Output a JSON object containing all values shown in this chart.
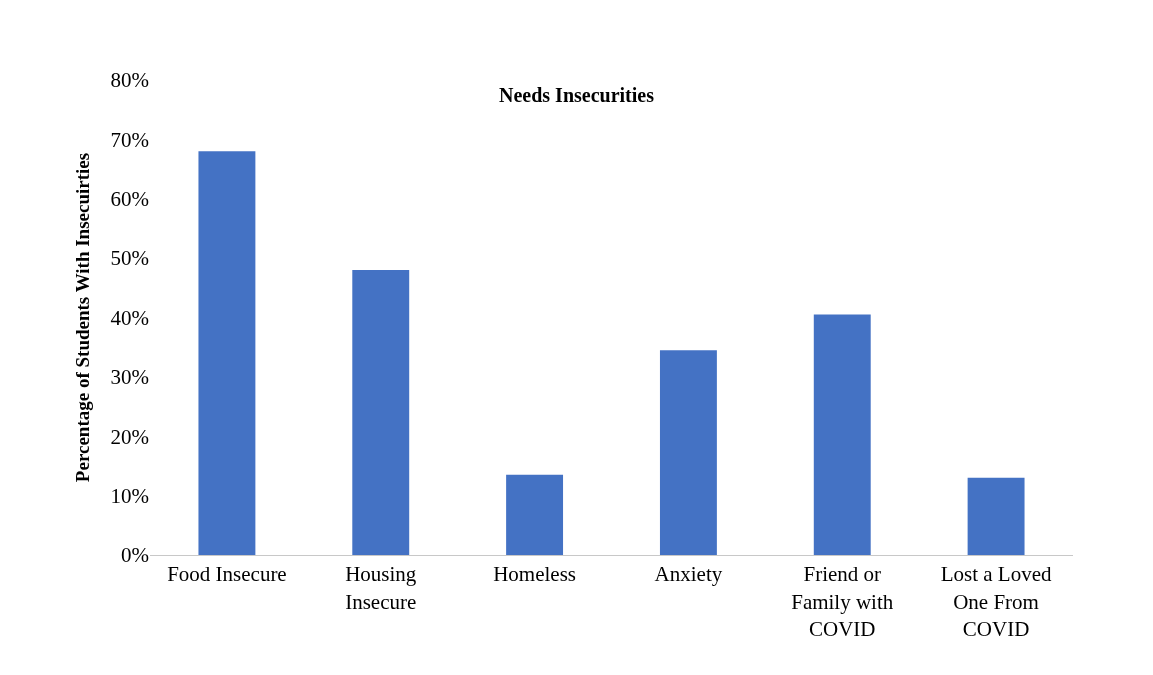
{
  "chart_data": {
    "type": "bar",
    "title": "Needs Insecurities",
    "ylabel": "Percentage of Students With Insecuirties",
    "categories": [
      "Food Insecure",
      "Housing\nInsecure",
      "Homeless",
      "Anxiety",
      "Friend or\nFamily with\nCOVID",
      "Lost a Loved\nOne From\nCOVID"
    ],
    "values": [
      68,
      48,
      13.5,
      34.5,
      40.5,
      13
    ],
    "color": "#4472c4",
    "ylim": [
      0,
      80
    ],
    "yticks": [
      {
        "value": 0,
        "label": "0%"
      },
      {
        "value": 10,
        "label": "10%"
      },
      {
        "value": 20,
        "label": "20%"
      },
      {
        "value": 30,
        "label": "30%"
      },
      {
        "value": 40,
        "label": "40%"
      },
      {
        "value": 50,
        "label": "50%"
      },
      {
        "value": 60,
        "label": "60%"
      },
      {
        "value": 70,
        "label": "70%"
      },
      {
        "value": 80,
        "label": "80%"
      }
    ]
  }
}
